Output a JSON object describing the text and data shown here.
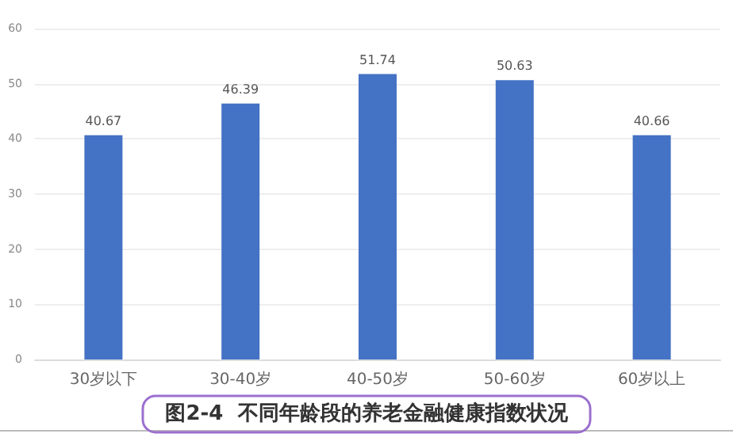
{
  "chart_data": {
    "type": "bar",
    "title": "图2-4  不同年龄段的养老金融健康指数状况",
    "categories": [
      "30岁以下",
      "30-40岁",
      "40-50岁",
      "50-60岁",
      "60岁以上"
    ],
    "values": [
      40.67,
      46.39,
      51.74,
      50.63,
      40.66
    ],
    "color": "#4472c4",
    "ylim": [
      0,
      60
    ],
    "yticks": [
      0,
      10,
      20,
      30,
      40,
      50,
      60
    ],
    "grid": "y",
    "data_labels": true
  }
}
